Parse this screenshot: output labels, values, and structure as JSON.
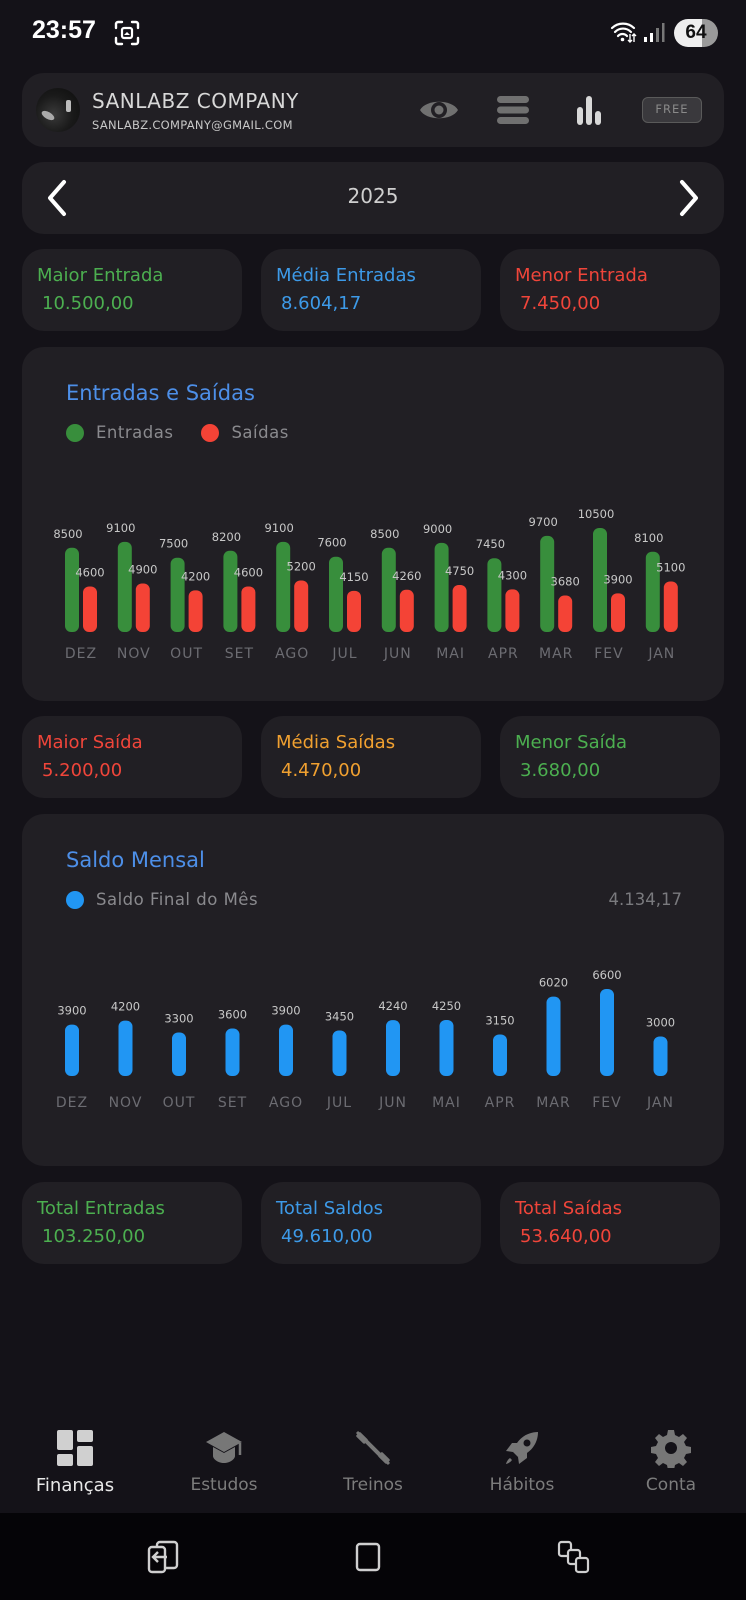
{
  "status_bar": {
    "time": "23:57",
    "battery": "64"
  },
  "header": {
    "company_name": "SANLABZ COMPANY",
    "email": "SANLABZ.COMPANY@GMAIL.COM",
    "plan_badge": "FREE",
    "icons": [
      "eye-icon",
      "menu-icon",
      "bar-chart-icon"
    ]
  },
  "year_selector": {
    "year": "2025",
    "prev_icon": "chevron-left-icon",
    "next_icon": "chevron-right-icon"
  },
  "colors": {
    "green": "#3e8e3e",
    "red": "#f44336",
    "blue": "#2196f3",
    "orange": "#f0a030",
    "title_blue": "#4d8fe8",
    "label_green": "#4caf50",
    "label_blue": "#3d9ae8",
    "label_red": "#f0453a"
  },
  "entrada_stats": [
    {
      "label": "Maior Entrada",
      "value": "10.500,00",
      "color": "#4caf50"
    },
    {
      "label": "Média Entradas",
      "value": "8.604,17",
      "color": "#3d9ae8"
    },
    {
      "label": "Menor Entrada",
      "value": "7.450,00",
      "color": "#f0453a"
    }
  ],
  "saida_stats": [
    {
      "label": "Maior Saída",
      "value": "5.200,00",
      "color": "#f0453a"
    },
    {
      "label": "Média Saídas",
      "value": "4.470,00",
      "color": "#f0a030"
    },
    {
      "label": "Menor Saída",
      "value": "3.680,00",
      "color": "#4caf50"
    }
  ],
  "total_stats": [
    {
      "label": "Total Entradas",
      "value": "103.250,00",
      "color": "#4caf50"
    },
    {
      "label": "Total Saldos",
      "value": "49.610,00",
      "color": "#3d9ae8"
    },
    {
      "label": "Total Saídas",
      "value": "53.640,00",
      "color": "#f0453a"
    }
  ],
  "chart_data": [
    {
      "type": "bar",
      "title": "Entradas e Saídas",
      "categories": [
        "DEZ",
        "NOV",
        "OUT",
        "SET",
        "AGO",
        "JUL",
        "JUN",
        "MAI",
        "APR",
        "MAR",
        "FEV",
        "JAN"
      ],
      "series": [
        {
          "name": "Entradas",
          "color": "#388e3c",
          "values": [
            8500,
            9100,
            7500,
            8200,
            9100,
            7600,
            8500,
            9000,
            7450,
            9700,
            10500,
            8100
          ]
        },
        {
          "name": "Saídas",
          "color": "#f44336",
          "values": [
            4600,
            4900,
            4200,
            4600,
            5200,
            4150,
            4260,
            4750,
            4300,
            3680,
            3900,
            5100
          ]
        }
      ],
      "legend_position": "top-left",
      "grid": false,
      "ylim": [
        0,
        10500
      ]
    },
    {
      "type": "bar",
      "title": "Saldo Mensal",
      "categories": [
        "DEZ",
        "NOV",
        "OUT",
        "SET",
        "AGO",
        "JUL",
        "JUN",
        "MAI",
        "APR",
        "MAR",
        "FEV",
        "JAN"
      ],
      "series": [
        {
          "name": "Saldo Final do Mês",
          "color": "#2196f3",
          "values": [
            3900,
            4200,
            3300,
            3600,
            3900,
            3450,
            4240,
            4250,
            3150,
            6020,
            6600,
            3000
          ]
        }
      ],
      "legend_position": "top-left",
      "legend_value": "4.134,17",
      "grid": false,
      "ylim": [
        0,
        6600
      ]
    }
  ],
  "bottom_nav": [
    {
      "label": "Finanças",
      "icon": "dashboard-icon",
      "active": true
    },
    {
      "label": "Estudos",
      "icon": "graduation-cap-icon",
      "active": false
    },
    {
      "label": "Treinos",
      "icon": "dumbbell-icon",
      "active": false
    },
    {
      "label": "Hábitos",
      "icon": "rocket-icon",
      "active": false
    },
    {
      "label": "Conta",
      "icon": "gear-icon",
      "active": false
    }
  ],
  "system_nav": [
    "back-icon",
    "home-icon",
    "recents-icon"
  ]
}
